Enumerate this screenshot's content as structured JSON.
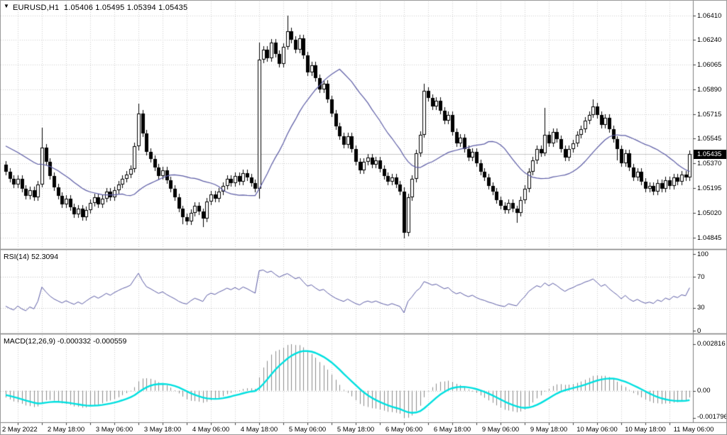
{
  "header": {
    "symbol_timeframe": "EURUSD,H1",
    "ohlc_text": "1.05406 1.05495 1.05394 1.05435",
    "text": "EURUSD,H1  1.05406 1.05495 1.05394 1.05435"
  },
  "price_axis": {
    "labels": [
      {
        "text": "1.06410",
        "value": 1.0641
      },
      {
        "text": "1.06240",
        "value": 1.0624
      },
      {
        "text": "1.06065",
        "value": 1.06065
      },
      {
        "text": "1.05890",
        "value": 1.0589
      },
      {
        "text": "1.05715",
        "value": 1.05715
      },
      {
        "text": "1.05545",
        "value": 1.05545
      },
      {
        "text": "1.05370",
        "value": 1.0537
      },
      {
        "text": "1.05195",
        "value": 1.05195
      },
      {
        "text": "1.05020",
        "value": 1.0502
      },
      {
        "text": "1.04845",
        "value": 1.04845
      }
    ],
    "current": {
      "text": "1.05435",
      "value": 1.05435
    }
  },
  "rsi_pane": {
    "label": "RSI(14) 52.3094",
    "axis": [
      {
        "text": "100",
        "value": 100
      },
      {
        "text": "70",
        "value": 70
      },
      {
        "text": "30",
        "value": 30
      },
      {
        "text": "0",
        "value": 0
      }
    ],
    "levels": [
      70,
      30
    ]
  },
  "macd_pane": {
    "label": "MACD(12,26,9) -0.000332 -0.000559",
    "axis_max": "0.002816",
    "axis_zero": "0.00",
    "axis_min": "-0.001796"
  },
  "time_axis": {
    "labels": [
      "2 May 2022",
      "2 May 18:00",
      "3 May 06:00",
      "3 May 18:00",
      "4 May 06:00",
      "4 May 18:00",
      "5 May 06:00",
      "5 May 18:00",
      "6 May 06:00",
      "6 May 18:00",
      "9 May 06:00",
      "9 May 18:00",
      "10 May 06:00",
      "10 May 18:00",
      "11 May 06:00"
    ],
    "candles_per_label": 12
  },
  "chart_data": {
    "type": "candlestick",
    "symbol": "EURUSD",
    "timeframe": "H1",
    "title": "EURUSD,H1 1.05406 1.05495 1.05394 1.05435",
    "last_ohlc": {
      "open": 1.05406,
      "high": 1.05495,
      "low": 1.05394,
      "close": 1.05435
    },
    "price_axis_ticks": [
      1.0641,
      1.0624,
      1.06065,
      1.0589,
      1.05715,
      1.05545,
      1.0537,
      1.05195,
      1.0502,
      1.04845
    ],
    "price_range": [
      1.04845,
      1.0641
    ],
    "current_price": 1.05435,
    "x_labels": [
      "2 May 2022",
      "2 May 18:00",
      "3 May 06:00",
      "3 May 18:00",
      "4 May 06:00",
      "4 May 18:00",
      "5 May 06:00",
      "5 May 18:00",
      "6 May 06:00",
      "6 May 18:00",
      "9 May 06:00",
      "9 May 18:00",
      "10 May 06:00",
      "10 May 18:00",
      "11 May 06:00"
    ],
    "grid": true,
    "prehistory_closes": [
      1.0558,
      1.0561,
      1.0556,
      1.0559,
      1.0554,
      1.0557,
      1.0552,
      1.0555,
      1.055,
      1.0553,
      1.0557,
      1.0554,
      1.0558,
      1.0555,
      1.0551,
      1.0554,
      1.055,
      1.0552,
      1.0548,
      1.0551,
      1.0547,
      1.055,
      1.0546,
      1.0549,
      1.0552,
      1.0548,
      1.0551,
      1.0547,
      1.0545,
      1.0536
    ],
    "closes": [
      1.0531,
      1.0526,
      1.0522,
      1.0526,
      1.0519,
      1.0514,
      1.0518,
      1.0513,
      1.0522,
      1.0548,
      1.0538,
      1.0528,
      1.052,
      1.0514,
      1.0508,
      1.0512,
      1.0506,
      1.0501,
      1.0505,
      1.0499,
      1.0504,
      1.0509,
      1.0513,
      1.0508,
      1.0512,
      1.0517,
      1.0513,
      1.0518,
      1.0522,
      1.0526,
      1.0529,
      1.0533,
      1.0549,
      1.0572,
      1.0558,
      1.0545,
      1.054,
      1.0534,
      1.0528,
      1.0532,
      1.0525,
      1.0519,
      1.0513,
      1.0505,
      1.0499,
      1.0496,
      1.0502,
      1.0507,
      1.0503,
      1.0498,
      1.051,
      1.0515,
      1.0512,
      1.0517,
      1.0521,
      1.0526,
      1.0523,
      1.0528,
      1.0524,
      1.053,
      1.0527,
      1.0523,
      1.0519,
      1.061,
      1.0617,
      1.0611,
      1.0622,
      1.0614,
      1.0607,
      1.0619,
      1.063,
      1.0624,
      1.0617,
      1.0625,
      1.0613,
      1.0601,
      1.0606,
      1.0597,
      1.0589,
      1.0593,
      1.0582,
      1.0572,
      1.0563,
      1.0556,
      1.055,
      1.0556,
      1.0547,
      1.0538,
      1.0532,
      1.0538,
      1.0541,
      1.0536,
      1.0539,
      1.0533,
      1.0528,
      1.0524,
      1.0527,
      1.0522,
      1.0517,
      1.0488,
      1.0513,
      1.0526,
      1.0544,
      1.0557,
      1.0588,
      1.0583,
      1.0577,
      1.0581,
      1.0574,
      1.0567,
      1.0571,
      1.0559,
      1.0551,
      1.0555,
      1.0547,
      1.0541,
      1.0545,
      1.0537,
      1.0531,
      1.0527,
      1.0521,
      1.0517,
      1.0511,
      1.0507,
      1.0504,
      1.0509,
      1.0505,
      1.0502,
      1.0511,
      1.0519,
      1.0531,
      1.0539,
      1.0547,
      1.0544,
      1.0557,
      1.0551,
      1.0559,
      1.0554,
      1.0547,
      1.0541,
      1.0547,
      1.0551,
      1.0557,
      1.0561,
      1.0567,
      1.0571,
      1.0577,
      1.0571,
      1.0564,
      1.0569,
      1.0561,
      1.0554,
      1.0547,
      1.0537,
      1.0544,
      1.0534,
      1.0527,
      1.0531,
      1.0524,
      1.0519,
      1.0521,
      1.0517,
      1.0523,
      1.0519,
      1.0525,
      1.0521,
      1.0527,
      1.0524,
      1.0529,
      1.0527,
      1.05435
    ],
    "default_wick": 0.00025,
    "wick_overrides": {
      "9": [
        0.0014,
        0.0002
      ],
      "33": [
        0.0007,
        0.0003
      ],
      "44": [
        0.0002,
        0.0005
      ],
      "49": [
        0.0002,
        0.0006
      ],
      "63": [
        0.0012,
        0.0007
      ],
      "70": [
        0.0011,
        0.0002
      ],
      "99": [
        0.0003,
        0.0004
      ],
      "104": [
        0.0005,
        0.0002
      ],
      "127": [
        0.0002,
        0.0007
      ],
      "134": [
        0.0019,
        0.0002
      ],
      "146": [
        0.0005,
        0.0002
      ],
      "152": [
        0.0002,
        0.0008
      ]
    },
    "indicators": {
      "ma_period": 21,
      "rsi_period": 14,
      "rsi_levels": [
        30,
        70
      ],
      "rsi_last": 52.3094,
      "macd_params": [
        12,
        26,
        9
      ],
      "macd_last": -0.000332,
      "macd_signal_last": -0.000559,
      "macd_axis_max": 0.002816,
      "macd_axis_min": -0.001796
    },
    "colors": {
      "bull": "#ffffff",
      "bear": "#000000",
      "wick": "#000000",
      "ma": "#5b5ba5",
      "rsi": "#5b5ba5",
      "macd_hist": "#8c8c8c",
      "macd_signal": "#00e0e0",
      "grid": "#d0d0d0",
      "level": "#c4c4c4",
      "axis_border": "#808080",
      "bid_line": "#c8c8c8",
      "badge_bg": "#000000",
      "badge_fg": "#ffffff"
    }
  }
}
